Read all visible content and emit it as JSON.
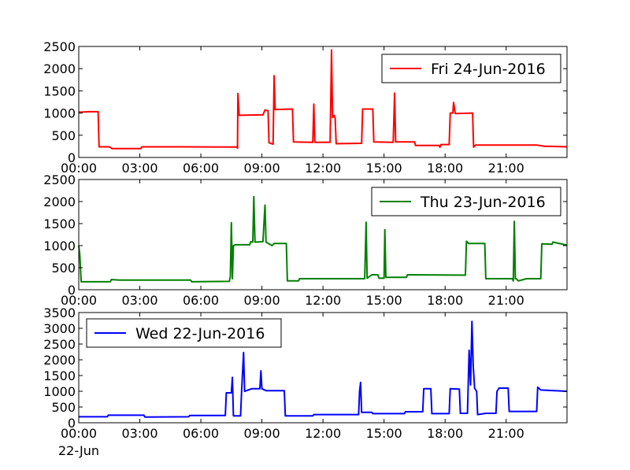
{
  "chart_data": [
    {
      "type": "line",
      "series": [
        {
          "name": "Fri 24-Jun-2016",
          "color": "#ff0000",
          "points": [
            [
              0,
              1030
            ],
            [
              0.05,
              1020
            ],
            [
              0.5,
              1030
            ],
            [
              0.95,
              1030
            ],
            [
              1.0,
              240
            ],
            [
              1.5,
              240
            ],
            [
              1.65,
              200
            ],
            [
              3.05,
              200
            ],
            [
              3.1,
              240
            ],
            [
              5.0,
              240
            ],
            [
              7.75,
              235
            ],
            [
              7.8,
              210
            ],
            [
              7.82,
              1440
            ],
            [
              7.88,
              950
            ],
            [
              9.05,
              960
            ],
            [
              9.15,
              1070
            ],
            [
              9.3,
              1050
            ],
            [
              9.35,
              330
            ],
            [
              9.55,
              300
            ],
            [
              9.6,
              1840
            ],
            [
              9.65,
              1080
            ],
            [
              10.5,
              1090
            ],
            [
              10.55,
              350
            ],
            [
              11.5,
              340
            ],
            [
              11.55,
              1200
            ],
            [
              11.6,
              340
            ],
            [
              12.35,
              340
            ],
            [
              12.42,
              2420
            ],
            [
              12.47,
              900
            ],
            [
              12.55,
              950
            ],
            [
              12.6,
              880
            ],
            [
              12.65,
              310
            ],
            [
              13.9,
              320
            ],
            [
              13.95,
              1090
            ],
            [
              14.45,
              1090
            ],
            [
              14.5,
              350
            ],
            [
              15.45,
              340
            ],
            [
              15.52,
              1450
            ],
            [
              15.57,
              350
            ],
            [
              16.5,
              350
            ],
            [
              16.55,
              270
            ],
            [
              17.7,
              270
            ],
            [
              17.75,
              230
            ],
            [
              17.8,
              290
            ],
            [
              18.2,
              290
            ],
            [
              18.25,
              1000
            ],
            [
              18.38,
              1000
            ],
            [
              18.42,
              1240
            ],
            [
              18.5,
              990
            ],
            [
              19.35,
              1000
            ],
            [
              19.4,
              230
            ],
            [
              19.5,
              280
            ],
            [
              22.5,
              280
            ],
            [
              22.9,
              250
            ],
            [
              23.2,
              250
            ],
            [
              23.2,
              250
            ],
            [
              23.99,
              240
            ]
          ]
        }
      ],
      "xlim": [
        0,
        23.99
      ],
      "ylim": [
        0,
        2500
      ],
      "xticks": [
        0,
        3,
        6,
        9,
        12,
        15,
        18,
        21
      ],
      "xtick_labels": [
        "00:00",
        "03:00",
        "06:00",
        "09:00",
        "12:00",
        "15:00",
        "18:00",
        "21:00"
      ],
      "yticks": [
        0,
        500,
        1000,
        1500,
        2000,
        2500
      ],
      "ytick_labels": [
        "0",
        "500",
        "1000",
        "1500",
        "2000",
        "2500"
      ],
      "legend_position": "upper right"
    },
    {
      "type": "line",
      "series": [
        {
          "name": "Thu 23-Jun-2016",
          "color": "#008000",
          "points": [
            [
              0,
              1000
            ],
            [
              0.05,
              800
            ],
            [
              0.12,
              180
            ],
            [
              1.55,
              180
            ],
            [
              1.6,
              230
            ],
            [
              2.0,
              220
            ],
            [
              5.5,
              220
            ],
            [
              5.55,
              180
            ],
            [
              7.4,
              190
            ],
            [
              7.45,
              300
            ],
            [
              7.5,
              1520
            ],
            [
              7.55,
              250
            ],
            [
              7.6,
              1000
            ],
            [
              7.7,
              1020
            ],
            [
              8.4,
              1020
            ],
            [
              8.45,
              1090
            ],
            [
              8.55,
              1080
            ],
            [
              8.6,
              2110
            ],
            [
              8.66,
              1080
            ],
            [
              9.05,
              1090
            ],
            [
              9.15,
              1920
            ],
            [
              9.2,
              1080
            ],
            [
              9.5,
              1000
            ],
            [
              9.6,
              1050
            ],
            [
              10.2,
              1050
            ],
            [
              10.25,
              200
            ],
            [
              10.8,
              200
            ],
            [
              10.85,
              250
            ],
            [
              14.05,
              250
            ],
            [
              14.12,
              1530
            ],
            [
              14.17,
              260
            ],
            [
              14.4,
              340
            ],
            [
              14.7,
              340
            ],
            [
              14.75,
              260
            ],
            [
              15.0,
              260
            ],
            [
              15.04,
              1360
            ],
            [
              15.09,
              280
            ],
            [
              16.1,
              280
            ],
            [
              16.15,
              340
            ],
            [
              19.0,
              330
            ],
            [
              19.05,
              1100
            ],
            [
              19.15,
              1050
            ],
            [
              19.95,
              1050
            ],
            [
              20.0,
              250
            ],
            [
              21.3,
              250
            ],
            [
              21.35,
              200
            ],
            [
              21.4,
              1550
            ],
            [
              21.45,
              250
            ],
            [
              21.5,
              250
            ],
            [
              21.6,
              200
            ],
            [
              22.0,
              250
            ],
            [
              22.7,
              250
            ],
            [
              22.75,
              1040
            ],
            [
              23.25,
              1030
            ],
            [
              23.3,
              1080
            ],
            [
              23.99,
              1010
            ]
          ]
        }
      ],
      "xlim": [
        0,
        23.99
      ],
      "ylim": [
        0,
        2500
      ],
      "xticks": [
        0,
        3,
        6,
        9,
        12,
        15,
        18,
        21
      ],
      "xtick_labels": [
        "00:00",
        "03:00",
        "06:00",
        "09:00",
        "12:00",
        "15:00",
        "18:00",
        "21:00"
      ],
      "yticks": [
        0,
        500,
        1000,
        1500,
        2000,
        2500
      ],
      "ytick_labels": [
        "0",
        "500",
        "1000",
        "1500",
        "2000",
        "2500"
      ],
      "legend_position": "upper right"
    },
    {
      "type": "line",
      "series": [
        {
          "name": "Wed 22-Jun-2016",
          "color": "#0000ff",
          "points": [
            [
              0,
              190
            ],
            [
              1.4,
              190
            ],
            [
              1.45,
              240
            ],
            [
              3.2,
              240
            ],
            [
              3.25,
              180
            ],
            [
              5.4,
              190
            ],
            [
              5.45,
              230
            ],
            [
              7.2,
              230
            ],
            [
              7.25,
              950
            ],
            [
              7.5,
              950
            ],
            [
              7.55,
              1440
            ],
            [
              7.6,
              220
            ],
            [
              7.95,
              220
            ],
            [
              8.0,
              1000
            ],
            [
              8.1,
              2230
            ],
            [
              8.15,
              1000
            ],
            [
              8.5,
              1080
            ],
            [
              8.9,
              1080
            ],
            [
              8.95,
              1650
            ],
            [
              9.0,
              1080
            ],
            [
              9.2,
              1020
            ],
            [
              10.1,
              1020
            ],
            [
              10.15,
              220
            ],
            [
              11.5,
              220
            ],
            [
              11.55,
              260
            ],
            [
              13.75,
              260
            ],
            [
              13.8,
              1000
            ],
            [
              13.85,
              1280
            ],
            [
              13.9,
              330
            ],
            [
              14.4,
              330
            ],
            [
              14.45,
              290
            ],
            [
              16.0,
              290
            ],
            [
              16.05,
              350
            ],
            [
              16.9,
              350
            ],
            [
              16.95,
              1080
            ],
            [
              17.3,
              1080
            ],
            [
              17.35,
              290
            ],
            [
              18.2,
              290
            ],
            [
              18.25,
              1080
            ],
            [
              18.7,
              1070
            ],
            [
              18.75,
              300
            ],
            [
              19.1,
              300
            ],
            [
              19.18,
              2300
            ],
            [
              19.25,
              1200
            ],
            [
              19.32,
              3220
            ],
            [
              19.38,
              1800
            ],
            [
              19.45,
              1100
            ],
            [
              19.55,
              990
            ],
            [
              19.6,
              260
            ],
            [
              20.0,
              300
            ],
            [
              20.5,
              300
            ],
            [
              20.55,
              1000
            ],
            [
              20.65,
              1100
            ],
            [
              21.1,
              1100
            ],
            [
              21.15,
              360
            ],
            [
              22.5,
              360
            ],
            [
              22.55,
              1130
            ],
            [
              22.7,
              1040
            ],
            [
              23.99,
              1000
            ]
          ]
        }
      ],
      "xlim": [
        0,
        23.99
      ],
      "ylim": [
        0,
        3500
      ],
      "xticks": [
        0,
        3,
        6,
        9,
        12,
        15,
        18,
        21
      ],
      "xtick_labels": [
        "00:00",
        "03:00",
        "06:00",
        "09:00",
        "12:00",
        "15:00",
        "18:00",
        "21:00"
      ],
      "extra_xtick_label": "22-Jun",
      "yticks": [
        0,
        500,
        1000,
        1500,
        2000,
        2500,
        3000,
        3500
      ],
      "ytick_labels": [
        "0",
        "500",
        "1000",
        "1500",
        "2000",
        "2500",
        "3000",
        "3500"
      ],
      "legend_position": "upper left"
    }
  ]
}
